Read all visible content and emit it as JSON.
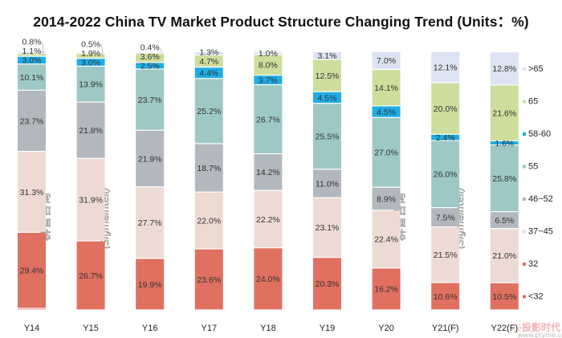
{
  "chart_data": {
    "type": "bar",
    "stacked": true,
    "title": "2014-2022 China TV Market Product Structure Changing Trend (Units：%)",
    "xlabel": "",
    "ylabel": "",
    "ylim": [
      0,
      100
    ],
    "grid": false,
    "legend_position": "right",
    "categories": [
      "Y14",
      "Y15",
      "Y16",
      "Y17",
      "Y18",
      "Y19",
      "Y20",
      "Y21(F)",
      "Y22(F)"
    ],
    "series": [
      {
        "name": "<32",
        "color": "#E07060",
        "values": [
          0.6,
          0,
          0,
          0,
          0,
          0,
          0,
          0,
          0
        ],
        "labels": [
          "",
          "",
          "",
          "",
          "",
          "",
          "",
          "",
          ""
        ]
      },
      {
        "name": "32",
        "color": "#E07060",
        "values": [
          29.4,
          26.7,
          19.9,
          23.6,
          24.0,
          20.3,
          16.2,
          10.6,
          10.5
        ],
        "labels": [
          "29.4%",
          "26.7%",
          "19.9%",
          "23.6%",
          "24.0%",
          "20.3%",
          "16.2%",
          "10.6%",
          "10.5%"
        ]
      },
      {
        "name": "37~45",
        "color": "#EDDBD3",
        "values": [
          31.3,
          31.9,
          27.7,
          22.0,
          22.2,
          23.1,
          22.4,
          21.5,
          21.0
        ],
        "labels": [
          "31.3%",
          "31.9%",
          "27.7%",
          "22.0%",
          "22.2%",
          "23.1%",
          "22.4%",
          "21.5%",
          "21.0%"
        ]
      },
      {
        "name": "46~52",
        "color": "#B3B8BE",
        "values": [
          23.7,
          21.8,
          21.9,
          18.7,
          14.2,
          11.0,
          8.9,
          7.5,
          6.5
        ],
        "labels": [
          "23.7%",
          "21.8%",
          "21.9%",
          "18.7%",
          "14.2%",
          "11.0%",
          "8.9%",
          "7.5%",
          "6.5%"
        ]
      },
      {
        "name": "55",
        "color": "#9DC8C6",
        "values": [
          10.1,
          13.9,
          23.7,
          25.2,
          26.7,
          25.5,
          27.0,
          26.0,
          25.8
        ],
        "labels": [
          "10.1%",
          "13.9%",
          "23.7%",
          "25.2%",
          "26.7%",
          "25.5%",
          "27.0%",
          "26.0%",
          "25.8%"
        ]
      },
      {
        "name": "58-60",
        "color": "#1EADE6",
        "values": [
          3.0,
          3.0,
          2.5,
          4.4,
          3.7,
          4.5,
          4.5,
          2.4,
          1.6
        ],
        "labels": [
          "3.0%",
          "3.0%",
          "2.5%",
          "4.4%",
          "3.7%",
          "4.5%",
          "4.5%",
          "2.4%",
          "1.6%"
        ]
      },
      {
        "name": "65",
        "color": "#CDDE9C",
        "values": [
          1.1,
          1.9,
          3.6,
          4.7,
          8.0,
          12.5,
          14.1,
          20.0,
          21.6
        ],
        "labels": [
          "1.1%",
          "1.9%",
          "3.6%",
          "4.7%",
          "8.0%",
          "12.5%",
          "14.1%",
          "20.0%",
          "21.6%"
        ]
      },
      {
        "name": ">65",
        "color": "#DCE3F2",
        "values": [
          0.8,
          0.5,
          0.4,
          1.3,
          1.0,
          3.1,
          7.0,
          12.1,
          12.8
        ],
        "labels": [
          "0.8%",
          "0.5%",
          "0.4%",
          "1.3%",
          "1.0%",
          "3.1%",
          "7.0%",
          "12.1%",
          "12.8%"
        ]
      }
    ],
    "legend": [
      ">65",
      "65",
      "58-60",
      "55",
      "46~52",
      "37~45",
      "32",
      "<32"
    ],
    "watermarks": [
      "群智咨询",
      "(Sigmaintell)",
      "投影时代",
      "www.ptyme.com"
    ]
  }
}
